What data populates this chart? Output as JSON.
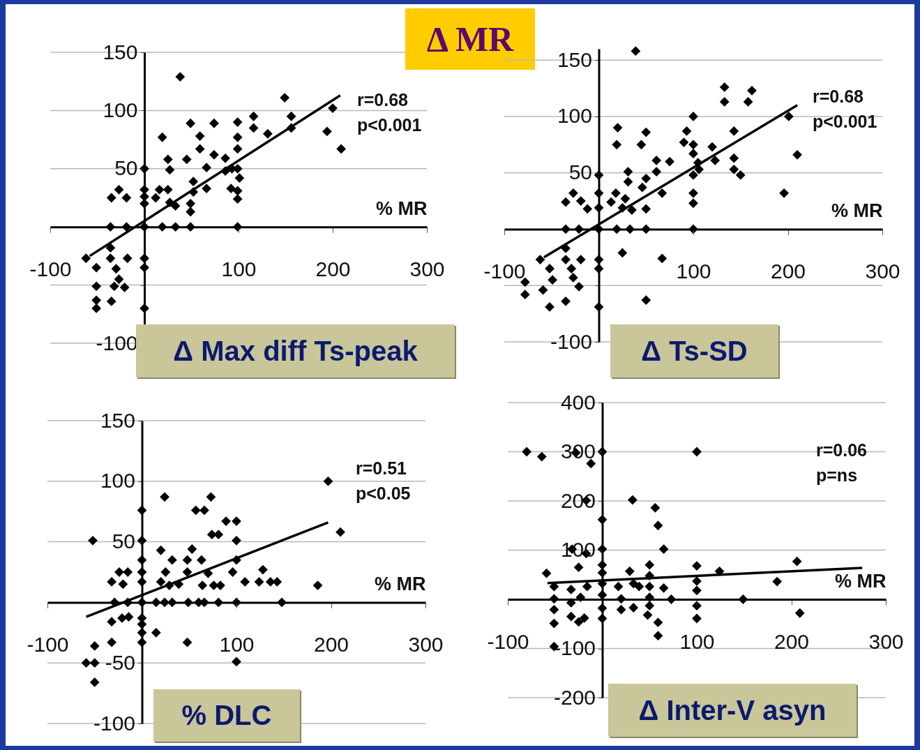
{
  "chart_data": [
    {
      "type": "scatter",
      "title": "Δ Max diff Ts-peak",
      "subtitle": "Δ MR",
      "xlabel": "% MR",
      "annotations": [
        "r=0.68",
        "p<0.001"
      ],
      "xlim": [
        -100,
        300
      ],
      "ylim": [
        -100,
        150
      ],
      "xticks": [
        -100,
        100,
        200,
        300
      ],
      "yticks": [
        -100,
        {
          "value": -50,
          "label": null
        },
        50,
        100,
        150
      ],
      "grid": "y",
      "series": [
        {
          "marker": "diamond",
          "color": "#000000",
          "x": [
            38,
            149,
            200,
            156,
            116,
            116,
            156,
            131,
            194,
            209,
            49,
            74,
            99,
            99,
            99,
            59,
            59,
            19,
            74,
            86,
            93,
            86,
            99,
            101,
            45,
            66,
            25,
            27,
            0,
            0,
            0,
            0,
            16,
            12,
            25,
            27,
            33,
            52,
            52,
            66,
            49,
            49,
            92,
            99,
            99,
            -27,
            -19,
            -35,
            -36,
            -19,
            0,
            19,
            33,
            49,
            99,
            -62,
            -51,
            -36,
            -36,
            -30,
            -18,
            -27,
            -21,
            -51,
            -51,
            -51,
            -35,
            -32,
            0,
            0,
            0
          ],
          "values": [
            129,
            111,
            102,
            95,
            95,
            85,
            85,
            80,
            82,
            67,
            89,
            89,
            90,
            77,
            67,
            78,
            67,
            77,
            62,
            59,
            50,
            48,
            50,
            42,
            58,
            51,
            58,
            49,
            50,
            32,
            26,
            20,
            32,
            25,
            32,
            21,
            18,
            39,
            30,
            33,
            20,
            13,
            33,
            31,
            24,
            32,
            25,
            25,
            0,
            0,
            0,
            0,
            0,
            0,
            0,
            -27,
            -35,
            -18,
            -27,
            -36,
            -27,
            -45,
            -52,
            -51,
            -63,
            -70,
            -64,
            -51,
            -27,
            -35,
            -70
          ]
        },
        {
          "type": "line",
          "color": "#000000",
          "x": [
            -58,
            208
          ],
          "values": [
            -25,
            113
          ]
        }
      ]
    },
    {
      "type": "scatter",
      "title": "Δ Ts-SD",
      "xlabel": "% MR",
      "annotations": [
        "r=0.68",
        "p<0.001"
      ],
      "xlim": [
        -100,
        300
      ],
      "ylim": [
        -100,
        160
      ],
      "xticks": [
        -100,
        100,
        200,
        300
      ],
      "yticks": [
        -100,
        {
          "value": -50,
          "label": null
        },
        50,
        100,
        150
      ],
      "grid": "y",
      "series": [
        {
          "marker": "diamond",
          "color": "#000000",
          "x": [
            39,
            133,
            162,
            133,
            158,
            100,
            201,
            143,
            20,
            50,
            19,
            45,
            93,
            90,
            100,
            120,
            210,
            61,
            75,
            100,
            105,
            123,
            143,
            143,
            150,
            106,
            100,
            61,
            196,
            31,
            31,
            50,
            46,
            67,
            100,
            100,
            0,
            0,
            0,
            18,
            13,
            28,
            25,
            35,
            50,
            -35,
            -27,
            -19,
            -12,
            -35,
            -21,
            0,
            19,
            33,
            50,
            100,
            25,
            67,
            50,
            -62,
            -35,
            -35,
            -19,
            -52,
            -29,
            -78,
            -78,
            -59,
            -49,
            -27,
            -21,
            -35,
            -52,
            0,
            0,
            0
          ],
          "values": [
            158,
            126,
            123,
            113,
            113,
            100,
            100,
            87,
            90,
            86,
            75,
            75,
            87,
            77,
            75,
            73,
            66,
            61,
            60,
            67,
            59,
            61,
            63,
            53,
            48,
            53,
            48,
            51,
            32,
            51,
            42,
            45,
            37,
            32,
            32,
            23,
            48,
            32,
            19,
            32,
            24,
            27,
            19,
            17,
            18,
            24,
            32,
            25,
            18,
            0,
            0,
            0,
            0,
            0,
            0,
            0,
            -21,
            -26,
            -63,
            -27,
            -17,
            -27,
            -27,
            -35,
            -35,
            -47,
            -58,
            -54,
            -45,
            -43,
            -51,
            -64,
            -69,
            -27,
            -35,
            -69
          ]
        },
        {
          "type": "line",
          "color": "#000000",
          "x": [
            -58,
            210
          ],
          "values": [
            -25,
            110
          ]
        }
      ]
    },
    {
      "type": "scatter",
      "title": "% DLC",
      "xlabel": "% MR",
      "annotations": [
        "r=0.51",
        "p<0.05"
      ],
      "xlim": [
        -100,
        300
      ],
      "ylim": [
        -100,
        150
      ],
      "xticks": [
        -100,
        100,
        200,
        300
      ],
      "yticks": [
        -100,
        -50,
        50,
        100,
        150
      ],
      "grid": "y",
      "series": [
        {
          "marker": "diamond",
          "color": "#000000",
          "x": [
            197,
            24,
            73,
            57,
            66,
            0,
            89,
            100,
            74,
            81,
            100,
            210,
            -52,
            0,
            20,
            53,
            32,
            48,
            63,
            100,
            25,
            48,
            70,
            96,
            128,
            0,
            0,
            0,
            -24,
            -15,
            -32,
            -20,
            20,
            29,
            39,
            64,
            76,
            83,
            109,
            124,
            136,
            143,
            186,
            -29,
            -15,
            0,
            15,
            24,
            32,
            49,
            60,
            66,
            81,
            100,
            148,
            -32,
            -21,
            -14,
            0,
            0,
            0,
            0,
            15,
            48,
            -32,
            -50,
            -59,
            -50,
            100,
            -50
          ],
          "values": [
            100,
            87,
            87,
            76,
            76,
            76,
            67,
            67,
            56,
            56,
            51,
            58,
            51,
            51,
            43,
            44,
            35,
            35,
            35,
            35,
            25,
            25,
            24,
            25,
            27,
            35,
            25,
            17,
            25,
            25,
            17,
            15,
            17,
            14,
            15,
            14,
            14,
            14,
            17,
            17,
            17,
            17,
            14,
            0,
            0,
            0,
            0,
            0,
            0,
            0,
            0,
            0,
            0,
            0,
            0,
            -16,
            -13,
            -12,
            -13,
            -18,
            -25,
            -33,
            -25,
            -33,
            -33,
            -36,
            -50,
            -50,
            -49,
            -66
          ]
        },
        {
          "type": "line",
          "color": "#000000",
          "x": [
            -59,
            197
          ],
          "values": [
            -12,
            66
          ]
        }
      ]
    },
    {
      "type": "scatter",
      "title": "Δ Inter-V asyn",
      "xlabel": "% MR",
      "annotations": [
        "r=0.06",
        "p=ns"
      ],
      "xlim": [
        -100,
        300
      ],
      "ylim": [
        -200,
        400
      ],
      "xticks": [
        -100,
        100,
        200,
        300
      ],
      "yticks": [
        -200,
        -100,
        100,
        200,
        300,
        400
      ],
      "grid": "y",
      "series": [
        {
          "marker": "diamond",
          "color": "#000000",
          "x": [
            -80,
            -64,
            -28,
            -12,
            0,
            100,
            -17,
            32,
            56,
            59,
            0,
            0,
            -32,
            -17,
            65,
            -25,
            -59,
            100,
            124,
            206,
            185,
            149,
            209,
            100,
            100,
            100,
            100,
            73,
            65,
            59,
            59,
            50,
            50,
            50,
            50,
            50,
            48,
            29,
            33,
            39,
            17,
            20,
            20,
            33,
            0,
            0,
            0,
            0,
            0,
            0,
            -51,
            -51,
            -51,
            -51,
            -51,
            -33,
            -33,
            -33,
            -25,
            -19,
            -23,
            -16
          ],
          "values": [
            300,
            290,
            298,
            276,
            300,
            300,
            201,
            202,
            186,
            150,
            162,
            102,
            102,
            93,
            102,
            65,
            53,
            68,
            57,
            77,
            36,
            0,
            -28,
            -39,
            -13,
            18,
            37,
            0,
            23,
            -47,
            -74,
            70,
            48,
            26,
            4,
            -13,
            -32,
            57,
            32,
            26,
            26,
            1,
            -21,
            -17,
            70,
            54,
            32,
            9,
            -18,
            -39,
            26,
            1,
            -21,
            -49,
            -96,
            20,
            -7,
            -35,
            -46,
            -38,
            4,
            26
          ]
        },
        {
          "type": "line",
          "color": "#000000",
          "x": [
            -58,
            275
          ],
          "values": [
            33,
            64
          ]
        }
      ]
    }
  ]
}
